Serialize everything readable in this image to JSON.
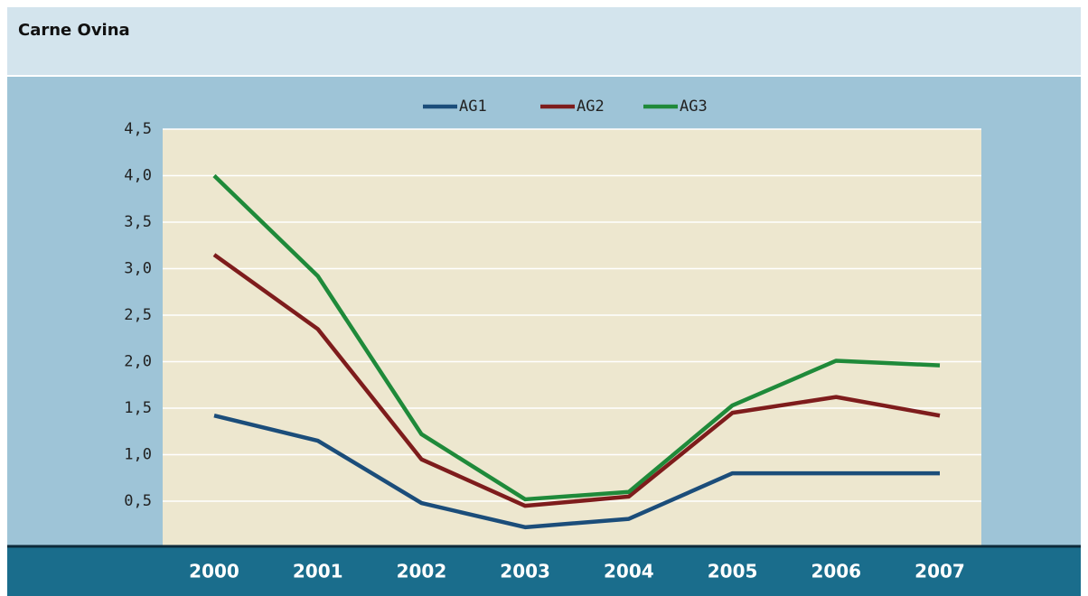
{
  "chart_data": {
    "type": "line",
    "title": "Carne Ovina",
    "categories": [
      "2000",
      "2001",
      "2002",
      "2003",
      "2004",
      "2005",
      "2006",
      "2007"
    ],
    "series": [
      {
        "name": "AG1",
        "color": "#1b4d7a",
        "values": [
          1.42,
          1.15,
          0.48,
          0.22,
          0.31,
          0.8,
          0.8,
          0.8
        ]
      },
      {
        "name": "AG2",
        "color": "#7e1c1c",
        "values": [
          3.15,
          2.35,
          0.95,
          0.45,
          0.55,
          1.45,
          1.62,
          1.42
        ]
      },
      {
        "name": "AG3",
        "color": "#1f8a3a",
        "values": [
          4.0,
          2.92,
          1.22,
          0.52,
          0.6,
          1.53,
          2.01,
          1.96
        ]
      }
    ],
    "ylim": [
      0,
      4.5
    ],
    "yticks": [
      {
        "value": 0.5,
        "label": "0,5"
      },
      {
        "value": 1.0,
        "label": "1,0"
      },
      {
        "value": 1.5,
        "label": "1,5"
      },
      {
        "value": 2.0,
        "label": "2,0"
      },
      {
        "value": 2.5,
        "label": "2,5"
      },
      {
        "value": 3.0,
        "label": "3,0"
      },
      {
        "value": 3.5,
        "label": "3,5"
      },
      {
        "value": 4.0,
        "label": "4,0"
      },
      {
        "value": 4.5,
        "label": "4,5"
      }
    ],
    "grid": true,
    "legend": "top"
  }
}
